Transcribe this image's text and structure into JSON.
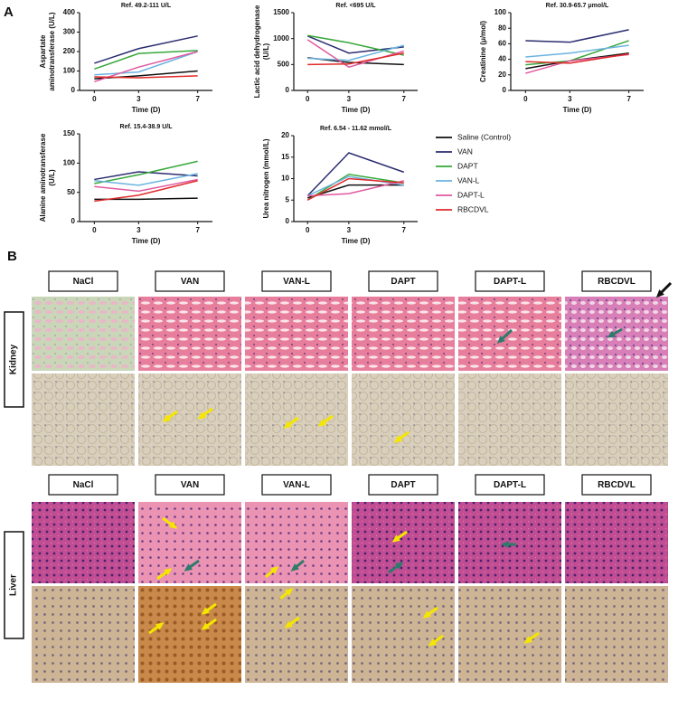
{
  "panel_labels": [
    "A",
    "B"
  ],
  "chart_data": [
    {
      "type": "line",
      "title": "Ref. 49.2-111 U/L",
      "xlabel": "Time (D)",
      "ylabel": [
        "Aspartate",
        "aminotransferase (U/L)"
      ],
      "x": [
        0,
        3,
        7
      ],
      "xlim": [
        -1,
        8
      ],
      "xticks": [
        0,
        3,
        7
      ],
      "ylim": [
        0,
        400
      ],
      "yticks": [
        0,
        100,
        200,
        300,
        400
      ],
      "series": [
        {
          "color": "#111111",
          "values": [
            60,
            75,
            100
          ]
        },
        {
          "color": "#2b2d70",
          "values": [
            140,
            215,
            280
          ]
        },
        {
          "color": "#37a83a",
          "values": [
            110,
            190,
            205
          ]
        },
        {
          "color": "#6bb3e0",
          "values": [
            80,
            95,
            200
          ]
        },
        {
          "color": "#e0589f",
          "values": [
            45,
            120,
            200
          ]
        },
        {
          "color": "#e02b2b",
          "values": [
            70,
            65,
            75
          ]
        }
      ]
    },
    {
      "type": "line",
      "title": "Ref. <695 U/L",
      "xlabel": "Time (D)",
      "ylabel": [
        "Lactic acid dehydrogenase",
        "(U/L)"
      ],
      "x": [
        0,
        3,
        7
      ],
      "xlim": [
        -1,
        8
      ],
      "xticks": [
        0,
        3,
        7
      ],
      "ylim": [
        0,
        1500
      ],
      "yticks": [
        0,
        500,
        1000,
        1500
      ],
      "series": [
        {
          "color": "#111111",
          "values": [
            630,
            540,
            500
          ]
        },
        {
          "color": "#2b2d70",
          "values": [
            1050,
            720,
            840
          ]
        },
        {
          "color": "#37a83a",
          "values": [
            1060,
            920,
            680
          ]
        },
        {
          "color": "#6bb3e0",
          "values": [
            620,
            580,
            870
          ]
        },
        {
          "color": "#e0589f",
          "values": [
            980,
            450,
            760
          ]
        },
        {
          "color": "#e02b2b",
          "values": [
            500,
            510,
            720
          ]
        }
      ]
    },
    {
      "type": "line",
      "title": "Ref. 30.9-65.7 μmol/L",
      "xlabel": "Time (D)",
      "ylabel": [
        "Creatinine (μ/mol)"
      ],
      "x": [
        0,
        3,
        7
      ],
      "xlim": [
        -1,
        8
      ],
      "xticks": [
        0,
        3,
        7
      ],
      "ylim": [
        0,
        100
      ],
      "yticks": [
        0,
        20,
        40,
        60,
        80,
        100
      ],
      "series": [
        {
          "color": "#111111",
          "values": [
            28,
            38,
            48
          ]
        },
        {
          "color": "#2b2d70",
          "values": [
            64,
            62,
            78
          ]
        },
        {
          "color": "#37a83a",
          "values": [
            33,
            38,
            64
          ]
        },
        {
          "color": "#6bb3e0",
          "values": [
            43,
            48,
            58
          ]
        },
        {
          "color": "#e0589f",
          "values": [
            22,
            38,
            46
          ]
        },
        {
          "color": "#e02b2b",
          "values": [
            37,
            35,
            47
          ]
        }
      ]
    },
    {
      "type": "line",
      "title": "Ref. 15.4-38.9 U/L",
      "xlabel": "Time (D)",
      "ylabel": [
        "Alanine aminotransferase",
        "(U/L)"
      ],
      "x": [
        0,
        3,
        7
      ],
      "xlim": [
        -1,
        8
      ],
      "xticks": [
        0,
        3,
        7
      ],
      "ylim": [
        0,
        150
      ],
      "yticks": [
        0,
        50,
        100,
        150
      ],
      "series": [
        {
          "color": "#111111",
          "values": [
            38,
            38,
            40
          ]
        },
        {
          "color": "#2b2d70",
          "values": [
            72,
            85,
            78
          ]
        },
        {
          "color": "#37a83a",
          "values": [
            65,
            80,
            103
          ]
        },
        {
          "color": "#6bb3e0",
          "values": [
            70,
            62,
            82
          ]
        },
        {
          "color": "#e0589f",
          "values": [
            60,
            52,
            72
          ]
        },
        {
          "color": "#e02b2b",
          "values": [
            35,
            45,
            70
          ]
        }
      ]
    },
    {
      "type": "line",
      "title": "Ref. 6.54 - 11.62 mmol/L",
      "xlabel": "Time (D)",
      "ylabel": [
        "Urea nitrogen (mmol/L)"
      ],
      "x": [
        0,
        3,
        7
      ],
      "xlim": [
        -1,
        8
      ],
      "xticks": [
        0,
        3,
        7
      ],
      "ylim": [
        0,
        20
      ],
      "yticks": [
        0,
        5,
        10,
        15,
        20
      ],
      "series": [
        {
          "name": "Saline (Control)",
          "color": "#111111",
          "values": [
            5.5,
            8.5,
            8.5
          ]
        },
        {
          "name": "VAN",
          "color": "#2b2d70",
          "values": [
            6,
            16,
            11.5
          ]
        },
        {
          "name": "DAPT",
          "color": "#37a83a",
          "values": [
            5,
            11,
            9
          ]
        },
        {
          "name": "VAN-L",
          "color": "#6bb3e0",
          "values": [
            6,
            10.5,
            8.5
          ]
        },
        {
          "name": "DAPT-L",
          "color": "#e0589f",
          "values": [
            6,
            6.5,
            9.5
          ]
        },
        {
          "name": "RBCDVL",
          "color": "#e02b2b",
          "values": [
            5,
            10,
            9
          ]
        }
      ]
    }
  ],
  "histology": {
    "kidney": {
      "label": "Kidney",
      "columns": [
        "NaCl",
        "VAN",
        "VAN-L",
        "DAPT",
        "DAPT-L",
        "RBCDVL"
      ]
    },
    "liver": {
      "label": "Liver",
      "columns": [
        "NaCl",
        "VAN",
        "VAN-L",
        "DAPT",
        "DAPT-L",
        "RBCDVL"
      ]
    }
  }
}
